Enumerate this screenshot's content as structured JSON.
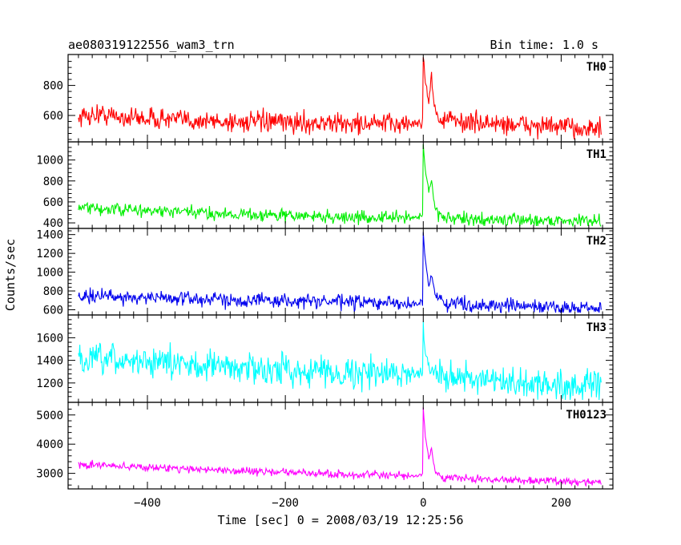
{
  "header": {
    "title": "ae080319122556_wam3_trn",
    "bin_time": "Bin time: 1.0 s"
  },
  "chart_data": {
    "type": "line",
    "xlabel": "Time [sec] 0 = 2008/03/19 12:25:56",
    "ylabel": "Counts/sec",
    "xlim": [
      -515,
      275
    ],
    "xticks": [
      -400,
      -200,
      0,
      200
    ],
    "xtick_labels": [
      "−400",
      "−200",
      "0",
      "200"
    ],
    "x_start": -500,
    "x_end": 258,
    "grid": false,
    "panels": [
      {
        "name": "TH0",
        "color": "#ff0000",
        "ylim": [
          440,
          990
        ],
        "yticks": [
          600,
          800
        ],
        "ytick_labels": [
          "600",
          "800"
        ],
        "profile": [
          [
            -500,
            590
          ],
          [
            -470,
            610
          ],
          [
            -440,
            590
          ],
          [
            -300,
            560
          ],
          [
            -100,
            545
          ],
          [
            -15,
            545
          ],
          [
            -1,
            555
          ],
          [
            0,
            990
          ],
          [
            3,
            830
          ],
          [
            8,
            700
          ],
          [
            12,
            870
          ],
          [
            16,
            650
          ],
          [
            22,
            580
          ],
          [
            60,
            555
          ],
          [
            258,
            510
          ]
        ],
        "noise": 34
      },
      {
        "name": "TH1",
        "color": "#00ee00",
        "ylim": [
          370,
          1150
        ],
        "yticks": [
          400,
          600,
          800,
          1000
        ],
        "ytick_labels": [
          "400",
          "600",
          "800",
          "1000"
        ],
        "profile": [
          [
            -500,
            540
          ],
          [
            -300,
            490
          ],
          [
            -100,
            450
          ],
          [
            -15,
            450
          ],
          [
            -1,
            470
          ],
          [
            0,
            1150
          ],
          [
            3,
            900
          ],
          [
            8,
            700
          ],
          [
            12,
            800
          ],
          [
            17,
            560
          ],
          [
            25,
            460
          ],
          [
            60,
            430
          ],
          [
            258,
            420
          ]
        ],
        "noise": 30
      },
      {
        "name": "TH2",
        "color": "#0000ee",
        "ylim": [
          570,
          1440
        ],
        "yticks": [
          600,
          800,
          1000,
          1200,
          1400
        ],
        "ytick_labels": [
          "600",
          "800",
          "1000",
          "1200",
          "1400"
        ],
        "profile": [
          [
            -500,
            750
          ],
          [
            -300,
            710
          ],
          [
            -100,
            680
          ],
          [
            -15,
            660
          ],
          [
            -1,
            680
          ],
          [
            0,
            1440
          ],
          [
            3,
            1100
          ],
          [
            8,
            850
          ],
          [
            12,
            1000
          ],
          [
            17,
            760
          ],
          [
            30,
            680
          ],
          [
            80,
            650
          ],
          [
            258,
            610
          ]
        ],
        "noise": 38
      },
      {
        "name": "TH3",
        "color": "#00ffff",
        "ylim": [
          1050,
          1780
        ],
        "yticks": [
          1200,
          1400,
          1600
        ],
        "ytick_labels": [
          "1200",
          "1400",
          "1600"
        ],
        "profile": [
          [
            -500,
            1400
          ],
          [
            -400,
            1390
          ],
          [
            -250,
            1330
          ],
          [
            -100,
            1290
          ],
          [
            -15,
            1280
          ],
          [
            -1,
            1300
          ],
          [
            0,
            1760
          ],
          [
            3,
            1450
          ],
          [
            10,
            1320
          ],
          [
            30,
            1280
          ],
          [
            100,
            1200
          ],
          [
            258,
            1170
          ]
        ],
        "noise": 65
      },
      {
        "name": "TH0123",
        "color": "#ff00ff",
        "ylim": [
          2550,
          5350
        ],
        "yticks": [
          3000,
          4000,
          5000
        ],
        "ytick_labels": [
          "3000",
          "4000",
          "5000"
        ],
        "profile": [
          [
            -500,
            3300
          ],
          [
            -300,
            3120
          ],
          [
            -100,
            2950
          ],
          [
            -15,
            2900
          ],
          [
            -1,
            2950
          ],
          [
            0,
            5300
          ],
          [
            3,
            4300
          ],
          [
            8,
            3500
          ],
          [
            12,
            3800
          ],
          [
            17,
            3050
          ],
          [
            30,
            2850
          ],
          [
            80,
            2800
          ],
          [
            258,
            2700
          ]
        ],
        "noise": 65
      }
    ]
  }
}
